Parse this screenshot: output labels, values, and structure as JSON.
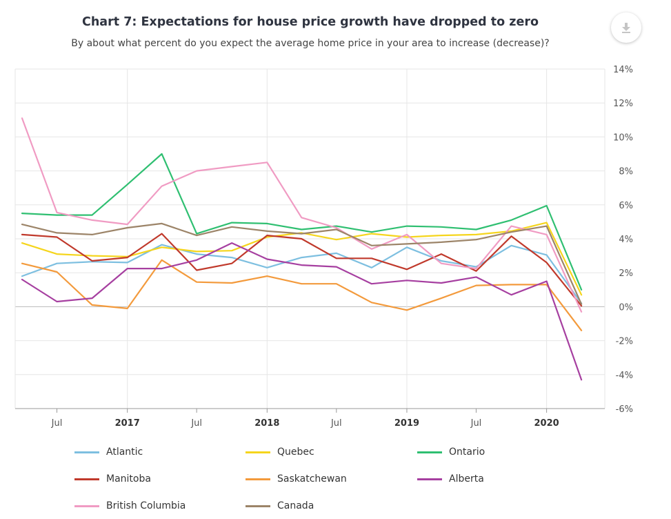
{
  "header": {
    "title": "Chart 7: Expectations for house price growth have dropped to zero",
    "subtitle": "By about what percent do you expect the average home price in your area to increase (decrease)?",
    "download_icon": "download-icon"
  },
  "chart_data": {
    "type": "line",
    "x": [
      "2016-04",
      "2016-07",
      "2016-10",
      "2017-01",
      "2017-04",
      "2017-07",
      "2017-10",
      "2018-01",
      "2018-04",
      "2018-07",
      "2018-10",
      "2019-01",
      "2019-04",
      "2019-07",
      "2019-10",
      "2020-01",
      "2020-04"
    ],
    "x_ticks": [
      {
        "date": "2016-07",
        "label": "Jul",
        "bold": false
      },
      {
        "date": "2017-01",
        "label": "2017",
        "bold": true
      },
      {
        "date": "2017-07",
        "label": "Jul",
        "bold": false
      },
      {
        "date": "2018-01",
        "label": "2018",
        "bold": true
      },
      {
        "date": "2018-07",
        "label": "Jul",
        "bold": false
      },
      {
        "date": "2019-01",
        "label": "2019",
        "bold": true
      },
      {
        "date": "2019-07",
        "label": "Jul",
        "bold": false
      },
      {
        "date": "2020-01",
        "label": "2020",
        "bold": true
      }
    ],
    "y_ticks": [
      14,
      12,
      10,
      8,
      6,
      4,
      2,
      0,
      -2,
      -4,
      -6
    ],
    "y_tick_labels": [
      "14%",
      "12%",
      "10%",
      "8%",
      "6%",
      "4%",
      "2%",
      "0%",
      "-2%",
      "-4%",
      "-6%"
    ],
    "ylim": [
      -6,
      14
    ],
    "xlim": [
      "2016-03-14",
      "2020-06-01"
    ],
    "grid": true,
    "y_axis_side": "right",
    "legend_position": "bottom",
    "series": [
      {
        "name": "Atlantic",
        "color": "#7dbfe0",
        "values": [
          1.8,
          2.55,
          2.65,
          2.6,
          3.65,
          3.1,
          2.9,
          2.3,
          2.9,
          3.15,
          2.3,
          3.5,
          2.7,
          2.35,
          3.6,
          3.05,
          0.2
        ]
      },
      {
        "name": "Quebec",
        "color": "#f5d51c",
        "values": [
          3.75,
          3.1,
          3.0,
          2.95,
          3.5,
          3.25,
          3.3,
          4.1,
          4.35,
          3.95,
          4.3,
          4.1,
          4.2,
          4.25,
          4.45,
          4.95,
          0.7
        ]
      },
      {
        "name": "Ontario",
        "color": "#2fbf71",
        "values": [
          5.5,
          5.4,
          5.4,
          7.2,
          9.0,
          4.3,
          4.95,
          4.9,
          4.55,
          4.75,
          4.4,
          4.75,
          4.7,
          4.55,
          5.1,
          5.95,
          1.0
        ]
      },
      {
        "name": "Manitoba",
        "color": "#c0392b",
        "values": [
          4.25,
          4.1,
          2.7,
          2.9,
          4.3,
          2.15,
          2.55,
          4.2,
          4.0,
          2.85,
          2.85,
          2.2,
          3.1,
          2.1,
          4.15,
          2.6,
          0.05
        ]
      },
      {
        "name": "Saskatchewan",
        "color": "#f39a3c",
        "values": [
          2.55,
          2.05,
          0.1,
          -0.1,
          2.75,
          1.45,
          1.4,
          1.8,
          1.35,
          1.35,
          0.25,
          -0.2,
          0.5,
          1.25,
          1.3,
          1.3,
          -1.4
        ]
      },
      {
        "name": "Alberta",
        "color": "#a63fa0",
        "values": [
          1.6,
          0.3,
          0.5,
          2.25,
          2.25,
          2.75,
          3.75,
          2.8,
          2.45,
          2.35,
          1.35,
          1.55,
          1.4,
          1.75,
          0.7,
          1.5,
          -4.3
        ]
      },
      {
        "name": "British Columbia",
        "color": "#f09bc3",
        "values": [
          11.1,
          5.55,
          5.1,
          4.85,
          7.1,
          8.0,
          8.25,
          8.5,
          5.25,
          4.65,
          3.4,
          4.25,
          2.55,
          2.25,
          4.75,
          4.25,
          -0.3
        ]
      },
      {
        "name": "Canada",
        "color": "#9c8468",
        "values": [
          4.85,
          4.35,
          4.25,
          4.65,
          4.9,
          4.2,
          4.7,
          4.45,
          4.3,
          4.55,
          3.6,
          3.7,
          3.8,
          3.95,
          4.4,
          4.75,
          0.15
        ]
      }
    ]
  },
  "legend": [
    {
      "name": "Atlantic",
      "color": "#7dbfe0"
    },
    {
      "name": "Quebec",
      "color": "#f5d51c"
    },
    {
      "name": "Ontario",
      "color": "#2fbf71"
    },
    {
      "name": "Manitoba",
      "color": "#c0392b"
    },
    {
      "name": "Saskatchewan",
      "color": "#f39a3c"
    },
    {
      "name": "Alberta",
      "color": "#a63fa0"
    },
    {
      "name": "British Columbia",
      "color": "#f09bc3"
    },
    {
      "name": "Canada",
      "color": "#9c8468"
    }
  ]
}
